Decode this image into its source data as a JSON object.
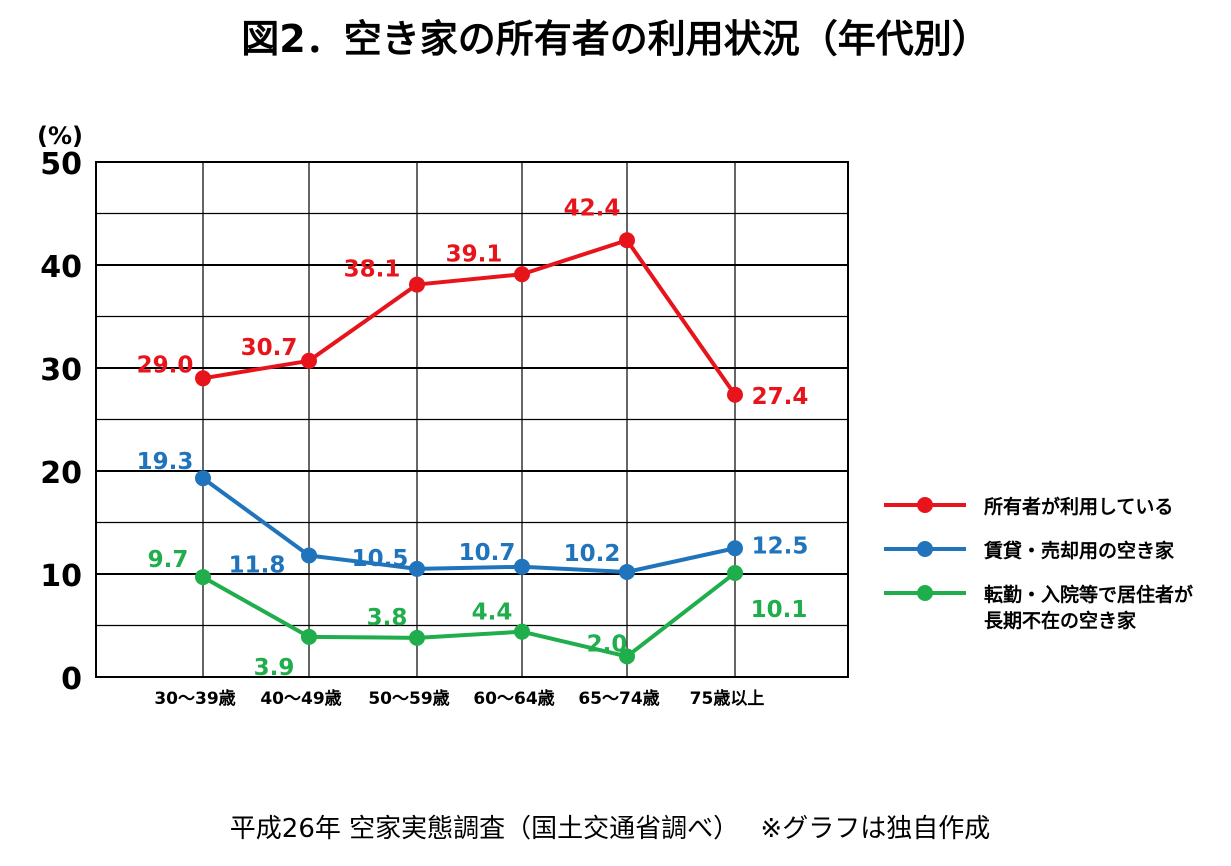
{
  "chart_data": {
    "type": "line",
    "title": "図2．空き家の所有者の利用状況（年代別）",
    "ylabel": "(%)",
    "ylim": [
      0,
      50
    ],
    "y_ticks": [
      0,
      10,
      20,
      30,
      40,
      50
    ],
    "grid": true,
    "legend_position": "right",
    "categories": [
      "30～39歳",
      "40～49歳",
      "50～59歳",
      "60～64歳",
      "65～74歳",
      "75歳以上"
    ],
    "series": [
      {
        "name": "所有者が利用している",
        "color": "#e8141c",
        "values": [
          29.0,
          30.7,
          38.1,
          39.1,
          42.4,
          27.4
        ],
        "labels": [
          "29.0",
          "30.7",
          "38.1",
          "39.1",
          "42.4",
          "27.4"
        ]
      },
      {
        "name": "賃貸・売却用の空き家",
        "color": "#1f74bc",
        "values": [
          19.3,
          11.8,
          10.5,
          10.7,
          10.2,
          12.5
        ],
        "labels": [
          "19.3",
          "11.8",
          "10.5",
          "10.7",
          "10.2",
          "12.5"
        ]
      },
      {
        "name": "転勤・入院等で居住者が長期不在の空き家",
        "legend_lines": [
          "転勤・入院等で居住者が",
          "長期不在の空き家"
        ],
        "color": "#1fae4b",
        "values": [
          9.7,
          3.9,
          3.8,
          4.4,
          2.0,
          10.1
        ],
        "labels": [
          "9.7",
          "3.9",
          "3.8",
          "4.4",
          "2.0",
          "10.1"
        ]
      }
    ]
  },
  "footer": {
    "source": "平成26年 空家実態調査（国土交通省調べ）　 ※グラフは独自作成"
  }
}
